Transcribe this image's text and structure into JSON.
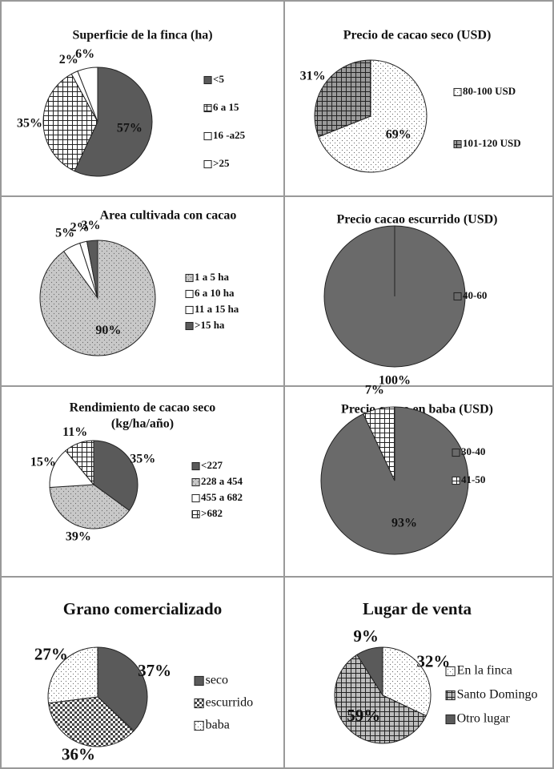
{
  "chart_data": [
    {
      "type": "pie",
      "title": "Superficie de la finca (ha)",
      "categories": [
        "<5",
        "6 a 15",
        "16 -a25",
        ">25"
      ],
      "values": [
        57,
        35,
        2,
        6
      ],
      "value_labels": [
        "57%",
        "35%",
        "2%",
        "6%"
      ],
      "colors": [
        "#5a5a5a",
        "#ffffff",
        "#ffffff",
        "#ffffff"
      ],
      "patterns": [
        "solid",
        "grid",
        "none",
        "none"
      ]
    },
    {
      "type": "pie",
      "title": "Precio de cacao seco (USD)",
      "categories": [
        "80-100  USD",
        "101-120  USD"
      ],
      "values": [
        69,
        31
      ],
      "value_labels": [
        "69%",
        "31%"
      ],
      "colors": [
        "#ffffff",
        "#9a9a9a"
      ],
      "patterns": [
        "dots",
        "grid"
      ]
    },
    {
      "type": "pie",
      "title": "Area cultivada con cacao",
      "categories": [
        "1 a 5 ha",
        "6 a 10 ha",
        "11 a 15 ha",
        ">15 ha"
      ],
      "values": [
        90,
        5,
        2,
        3
      ],
      "value_labels": [
        "90%",
        "5%",
        "2%",
        "3%"
      ],
      "colors": [
        "#c8c8c8",
        "#ffffff",
        "#ffffff",
        "#5a5a5a"
      ],
      "patterns": [
        "dots",
        "checker",
        "none",
        "solid"
      ]
    },
    {
      "type": "pie",
      "title": "Precio cacao escurrido (USD)",
      "categories": [
        "40-60"
      ],
      "values": [
        100
      ],
      "value_labels": [
        "100%"
      ],
      "colors": [
        "#6a6a6a"
      ],
      "patterns": [
        "solid"
      ]
    },
    {
      "type": "pie",
      "title": [
        "Rendimiento  de cacao seco",
        "(kg/ha/año)"
      ],
      "categories": [
        "<227",
        "228 a 454",
        "455 a 682",
        ">682"
      ],
      "values": [
        35,
        39,
        15,
        11
      ],
      "value_labels": [
        "35%",
        "39%",
        "15%",
        "11%"
      ],
      "colors": [
        "#5a5a5a",
        "#c8c8c8",
        "#ffffff",
        "#ffffff"
      ],
      "patterns": [
        "solid",
        "dots",
        "none",
        "grid"
      ]
    },
    {
      "type": "pie",
      "title": "Precio cacao en baba (USD)",
      "categories": [
        "30-40",
        "41-50"
      ],
      "values": [
        93,
        7
      ],
      "value_labels": [
        "93%",
        "7%"
      ],
      "colors": [
        "#6a6a6a",
        "#ffffff"
      ],
      "patterns": [
        "solid",
        "grid"
      ]
    },
    {
      "type": "pie",
      "title": "Grano comercializado",
      "categories": [
        "seco",
        "escurrido",
        "baba"
      ],
      "values": [
        37,
        36,
        27
      ],
      "value_labels": [
        "37%",
        "36%",
        "27%"
      ],
      "colors": [
        "#5a5a5a",
        "#444444",
        "#ffffff"
      ],
      "patterns": [
        "solid",
        "checker",
        "dots"
      ]
    },
    {
      "type": "pie",
      "title": "Lugar de venta",
      "categories": [
        "En la finca",
        "Santo Domingo",
        "Otro lugar"
      ],
      "values": [
        32,
        59,
        9
      ],
      "value_labels": [
        "32%",
        "59%",
        "9%"
      ],
      "colors": [
        "#ffffff",
        "#bdbdbd",
        "#5a5a5a"
      ],
      "patterns": [
        "dots",
        "grid",
        "solid"
      ]
    }
  ]
}
